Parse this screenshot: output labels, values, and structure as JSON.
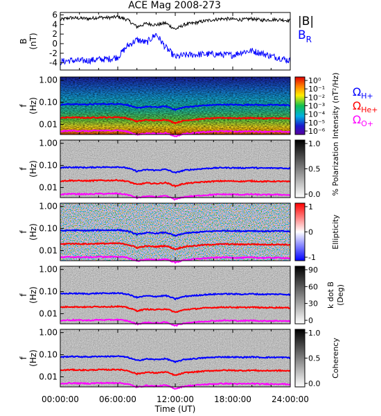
{
  "title": "ACE Mag 2008-273",
  "x_axis": {
    "label": "Time (UT)",
    "ticks": [
      "00:00:00",
      "06:00:00",
      "12:00:00",
      "18:00:00",
      "24:00:00"
    ]
  },
  "colors": {
    "B_total": "#000000",
    "B_R": "#0000ff",
    "omega_H": "#0000ff",
    "omega_He": "#ff0000",
    "omega_O": "#ff00ff"
  },
  "chart_data": [
    {
      "type": "line",
      "panel": "magnetic-field",
      "ylabel_line1": "B",
      "ylabel_line2": "(nT)",
      "ylim": [
        -5.5,
        6.5
      ],
      "yticks": [
        "6",
        "4",
        "2",
        "0",
        "-2",
        "-4"
      ],
      "ytick_values": [
        6,
        4,
        2,
        0,
        -2,
        -4
      ],
      "x_hours": [
        0,
        1,
        2,
        3,
        4,
        5,
        6,
        7,
        8,
        9,
        10,
        11,
        12,
        13,
        14,
        15,
        16,
        17,
        18,
        19,
        20,
        21,
        22,
        23,
        24
      ],
      "series": [
        {
          "name": "|B|",
          "values": [
            5.0,
            5.4,
            5.3,
            5.2,
            5.5,
            5.4,
            5.6,
            5.0,
            3.5,
            4.2,
            3.9,
            4.3,
            3.0,
            4.0,
            4.3,
            4.7,
            5.0,
            5.2,
            5.1,
            5.0,
            5.2,
            4.9,
            5.0,
            5.0,
            4.8
          ]
        },
        {
          "name": "B_R",
          "values": [
            -3.8,
            -3.5,
            -3.6,
            -3.5,
            -3.3,
            -3.2,
            -2.8,
            -0.5,
            0.8,
            0.2,
            2.0,
            -0.8,
            -2.8,
            -2.4,
            -2.3,
            -2.2,
            -2.2,
            -2.3,
            -2.4,
            -1.7,
            -1.5,
            -2.0,
            -2.6,
            -3.0,
            -3.6
          ]
        }
      ]
    },
    {
      "type": "heatmap",
      "panel": "intensity",
      "ylabel_line1": "f",
      "ylabel_line2": "(Hz)",
      "yticks": [
        "1.00",
        "0.10",
        "0.01"
      ],
      "colorbar_label": "Intensity (nT²/Hz)",
      "colorbar_ticks": [
        "10⁰",
        "10⁻¹",
        "10⁻²",
        "10⁻³",
        "10⁻⁴",
        "10⁻⁵",
        "10⁻⁶"
      ],
      "overlays": [
        "Ω_H+",
        "Ω_He+",
        "Ω_O+"
      ]
    },
    {
      "type": "heatmap",
      "panel": "polarization",
      "ylabel_line1": "f",
      "ylabel_line2": "(Hz)",
      "yticks": [
        "1.00",
        "0.10",
        "0.01"
      ],
      "colorbar_label": "% Polarization",
      "colorbar_ticks": [
        "1.0",
        "0.5",
        "0.0"
      ]
    },
    {
      "type": "heatmap",
      "panel": "ellipticity",
      "ylabel_line1": "f",
      "ylabel_line2": "(Hz)",
      "yticks": [
        "1.00",
        "0.10",
        "0.01"
      ],
      "colorbar_label": "Ellipticity",
      "colorbar_ticks": [
        "1",
        "0",
        "-1"
      ]
    },
    {
      "type": "heatmap",
      "panel": "k-dot-b",
      "ylabel_line1": "f",
      "ylabel_line2": "(Hz)",
      "yticks": [
        "1.00",
        "0.10",
        "0.01"
      ],
      "colorbar_label_line1": "k dot B",
      "colorbar_label_line2": "(Deg)",
      "colorbar_ticks": [
        "90",
        "60",
        "30",
        "0"
      ]
    },
    {
      "type": "heatmap",
      "panel": "coherency",
      "ylabel_line1": "f",
      "ylabel_line2": "(Hz)",
      "yticks": [
        "1.00",
        "0.10",
        "0.01"
      ],
      "colorbar_label": "Coherency",
      "colorbar_ticks": [
        "1.0",
        "0.5",
        "0.0"
      ]
    }
  ],
  "gyrofrequencies": {
    "x_hours": [
      0,
      1,
      2,
      3,
      4,
      5,
      6,
      7,
      8,
      9,
      10,
      11,
      12,
      13,
      14,
      15,
      16,
      17,
      18,
      19,
      20,
      21,
      22,
      23,
      24
    ],
    "omega_H_hz": [
      0.078,
      0.083,
      0.081,
      0.08,
      0.084,
      0.083,
      0.086,
      0.076,
      0.054,
      0.064,
      0.06,
      0.066,
      0.046,
      0.061,
      0.066,
      0.072,
      0.076,
      0.079,
      0.078,
      0.076,
      0.079,
      0.075,
      0.076,
      0.076,
      0.073
    ]
  },
  "legend_top": {
    "B_total": "|B|",
    "B_R_main": "B",
    "B_R_sub": "R"
  },
  "legend_omega": {
    "symbol": "Ω",
    "H": "H+",
    "He": "He+",
    "O": "O+"
  }
}
